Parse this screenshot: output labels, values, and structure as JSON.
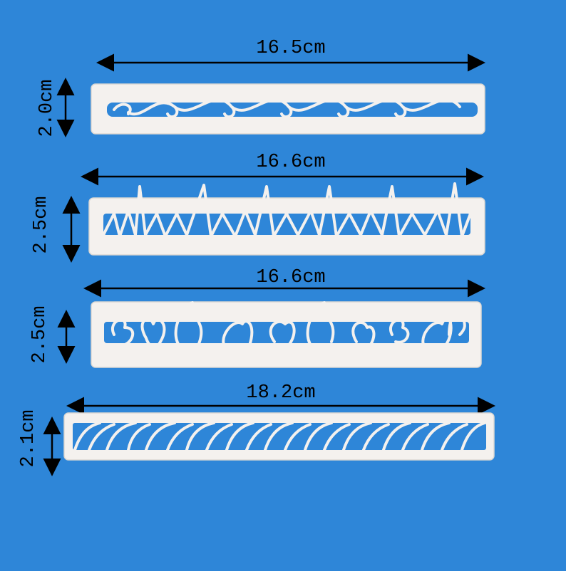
{
  "items": [
    {
      "width": "16.5cm",
      "height": "2.0cm"
    },
    {
      "width": "16.6cm",
      "height": "2.5cm"
    },
    {
      "width": "16.6cm",
      "height": "2.5cm"
    },
    {
      "width": "18.2cm",
      "height": "2.1cm"
    }
  ]
}
